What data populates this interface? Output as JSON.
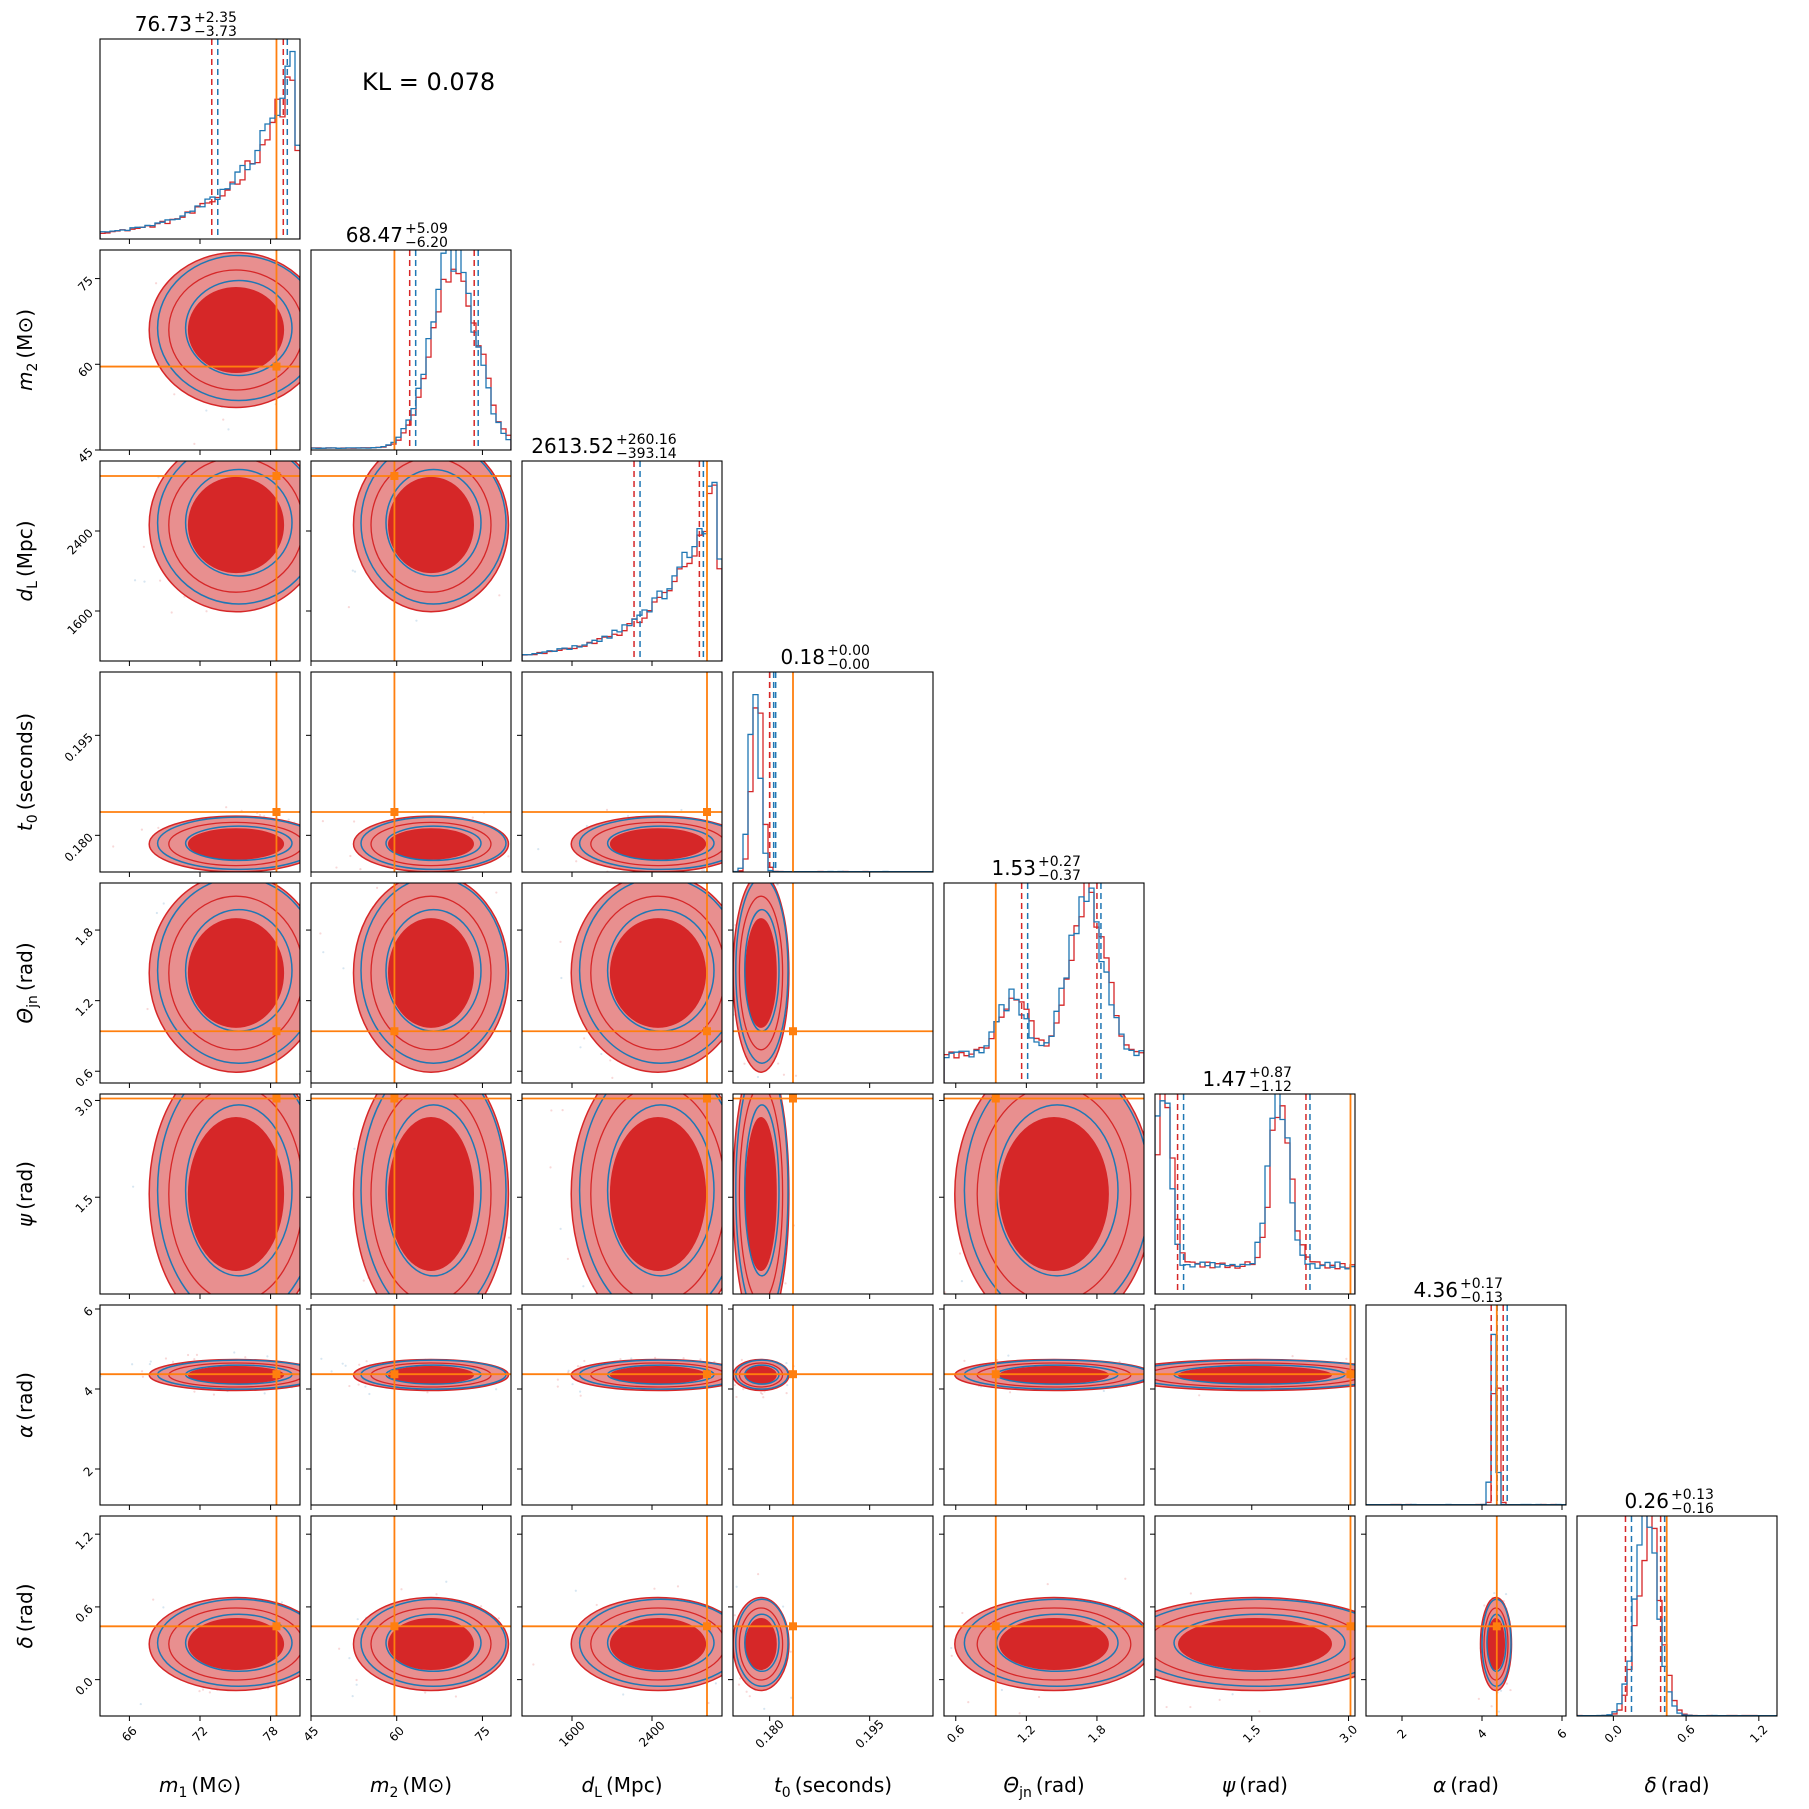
{
  "kl_annotation": "KL = 0.078",
  "colors": {
    "red": "#d62728",
    "red_light": "#e88f8f",
    "blue": "#1f77b4",
    "truth": "#ff7f0e"
  },
  "chart_data": {
    "type": "corner",
    "kl": 0.078,
    "series": [
      {
        "color": "#d62728",
        "style": "filled contours + step histogram"
      },
      {
        "color": "#1f77b4",
        "style": "line contours + step histogram"
      }
    ],
    "parameters": [
      {
        "key": "m1",
        "label": "m₁ (M⊙)",
        "label_main": "m",
        "label_sub": "1",
        "label_unit": "(M⊙)",
        "range": [
          63.5,
          80.5
        ],
        "ticks": [
          66,
          72,
          78
        ],
        "tick_labels": [
          "66",
          "72",
          "78"
        ],
        "truth": 78.5,
        "median": 76.73,
        "plus": "+2.35",
        "minus": "−3.73",
        "median_label": "76.73"
      },
      {
        "key": "m2",
        "label": "m₂ (M⊙)",
        "label_main": "m",
        "label_sub": "2",
        "label_unit": "(M⊙)",
        "range": [
          45,
          80
        ],
        "ticks": [
          45,
          60,
          75
        ],
        "tick_labels": [
          "45",
          "60",
          "75"
        ],
        "truth": 59.6,
        "median": 68.47,
        "plus": "+5.09",
        "minus": "−6.20",
        "median_label": "68.47"
      },
      {
        "key": "dL",
        "label": "d_L (Mpc)",
        "label_main": "d",
        "label_sub": "L",
        "label_unit": "(Mpc)",
        "range": [
          1100,
          3100
        ],
        "ticks": [
          1600,
          2400
        ],
        "tick_labels": [
          "1600",
          "2400"
        ],
        "truth": 2950,
        "median": 2613.52,
        "plus": "+260.16",
        "minus": "−393.14",
        "median_label": "2613.52"
      },
      {
        "key": "t0",
        "label": "t₀ (seconds)",
        "label_main": "t",
        "label_sub": "0",
        "label_unit": "(seconds)",
        "range": [
          0.1745,
          0.2045
        ],
        "ticks": [
          0.18,
          0.195
        ],
        "tick_labels": [
          "0.180",
          "0.195"
        ],
        "truth": 0.1835,
        "median": 0.18,
        "plus": "+0.00",
        "minus": "−0.00",
        "median_label": "0.18"
      },
      {
        "key": "theta",
        "label": "Θ_jn (rad)",
        "label_main": "Θ",
        "label_sub": "jn",
        "label_unit": "(rad)",
        "range": [
          0.5,
          2.2
        ],
        "ticks": [
          0.6,
          1.2,
          1.8
        ],
        "tick_labels": [
          "0.6",
          "1.2",
          "1.8"
        ],
        "truth": 0.94,
        "median": 1.53,
        "plus": "+0.27",
        "minus": "−0.37",
        "median_label": "1.53"
      },
      {
        "key": "psi",
        "label": "ψ (rad)",
        "label_main": "ψ",
        "label_sub": "",
        "label_unit": "(rad)",
        "range": [
          0.0,
          3.1
        ],
        "ticks": [
          1.5,
          3.0
        ],
        "tick_labels": [
          "1.5",
          "3.0"
        ],
        "truth": 3.03,
        "median": 1.47,
        "plus": "+0.87",
        "minus": "−1.12",
        "median_label": "1.47"
      },
      {
        "key": "alpha",
        "label": "α (rad)",
        "label_main": "α",
        "label_sub": "",
        "label_unit": "(rad)",
        "range": [
          1.1,
          6.1
        ],
        "ticks": [
          2,
          4,
          6
        ],
        "tick_labels": [
          "2",
          "4",
          "6"
        ],
        "truth": 4.37,
        "median": 4.36,
        "plus": "+0.17",
        "minus": "−0.13",
        "median_label": "4.36"
      },
      {
        "key": "delta",
        "label": "δ (rad)",
        "label_main": "δ",
        "label_sub": "",
        "label_unit": "(rad)",
        "range": [
          -0.3,
          1.35
        ],
        "ticks": [
          0.0,
          0.6,
          1.2
        ],
        "tick_labels": [
          "0.0",
          "0.6",
          "1.2"
        ],
        "truth": 0.44,
        "median": 0.26,
        "plus": "+0.13",
        "minus": "−0.16",
        "median_label": "0.26"
      }
    ],
    "hist_modes": {
      "m1": "rise_right",
      "m2": "peak_right",
      "dL": "rise_right",
      "t0": "narrow",
      "theta": "bimodal_soft",
      "psi": "bimodal_edges",
      "alpha": "narrow",
      "delta": "narrow"
    }
  }
}
